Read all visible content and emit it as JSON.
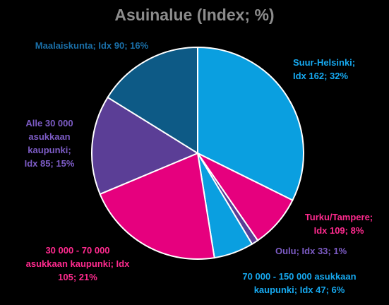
{
  "chart_data": {
    "type": "pie",
    "title": "Asuinalue (Index; %)",
    "slices": [
      {
        "label": "Suur-Helsinki; Idx 162; 32%",
        "value": 32,
        "index": 162,
        "color": "#0a9fe0"
      },
      {
        "label": "Turku/Tampere; Idx 109; 8%",
        "value": 8,
        "index": 109,
        "color": "#e6007e"
      },
      {
        "label": "Oulu; Idx 33; 1%",
        "value": 1,
        "index": 33,
        "color": "#5b3e96"
      },
      {
        "label": "70 000 - 150 000 asukkaan kaupunki; Idx 47; 6%",
        "value": 6,
        "index": 47,
        "color": "#0a9fe0"
      },
      {
        "label": "30 000 - 70 000 asukkaan kaupunki; Idx 105; 21%",
        "value": 21,
        "index": 105,
        "color": "#e6007e"
      },
      {
        "label": "Alle 30 000 asukkaan kaupunki; Idx 85; 15%",
        "value": 15,
        "index": 85,
        "color": "#5b3e96"
      },
      {
        "label": "Maalaiskunta; Idx 90; 16%",
        "value": 16,
        "index": 90,
        "color": "#0d5a86"
      }
    ],
    "label_colors": [
      "#16a9f0",
      "#ff2a8e",
      "#7d5cc6",
      "#16a9f0",
      "#ff2a8e",
      "#7d5cc6",
      "#1a6fa8"
    ]
  }
}
